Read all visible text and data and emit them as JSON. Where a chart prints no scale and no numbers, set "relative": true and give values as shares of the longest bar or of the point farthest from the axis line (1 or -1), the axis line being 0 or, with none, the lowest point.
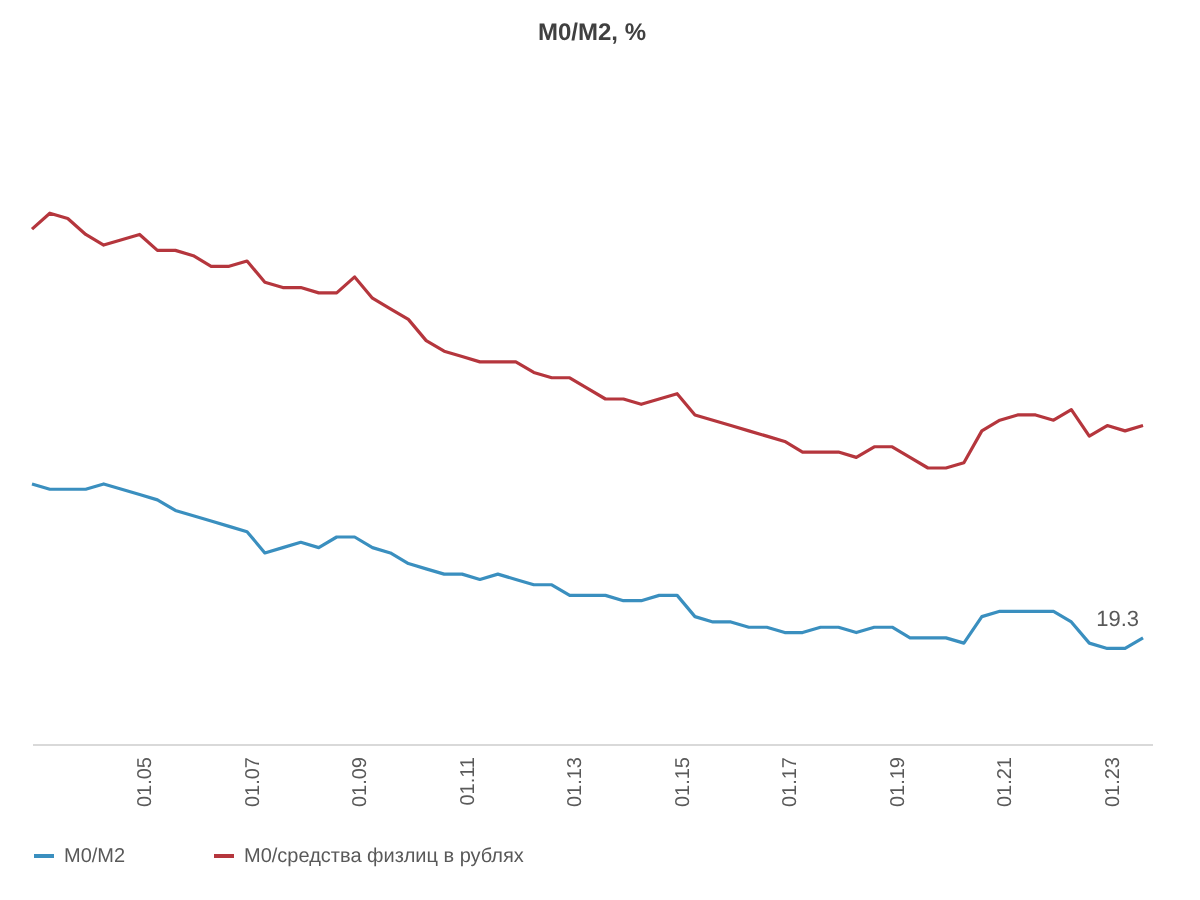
{
  "chart_data": {
    "type": "line",
    "title": "M0/M2, %",
    "relative": true,
    "legend": "bottom",
    "line_style": "solid",
    "x": [
      "2002-12",
      "2003-04",
      "2003-08",
      "2003-12",
      "2004-04",
      "2004-08",
      "2004-12",
      "2005-04",
      "2005-08",
      "2005-12",
      "2006-04",
      "2006-08",
      "2006-12",
      "2007-04",
      "2007-08",
      "2007-12",
      "2008-04",
      "2008-08",
      "2008-12",
      "2009-04",
      "2009-08",
      "2009-12",
      "2010-04",
      "2010-08",
      "2010-12",
      "2011-04",
      "2011-08",
      "2011-12",
      "2012-04",
      "2012-08",
      "2012-12",
      "2013-04",
      "2013-08",
      "2013-12",
      "2014-04",
      "2014-08",
      "2014-12",
      "2015-04",
      "2015-08",
      "2015-12",
      "2016-04",
      "2016-08",
      "2016-12",
      "2017-04",
      "2017-08",
      "2017-12",
      "2018-04",
      "2018-08",
      "2018-12",
      "2019-04",
      "2019-08",
      "2019-12",
      "2020-04",
      "2020-08",
      "2020-12",
      "2021-04",
      "2021-08",
      "2021-12",
      "2022-04",
      "2022-08",
      "2022-12",
      "2023-04",
      "2023-08"
    ],
    "xlim": [
      "2002-12",
      "2023-10"
    ],
    "xticks": [
      {
        "value": "2005-01",
        "label": "01.05"
      },
      {
        "value": "2007-01",
        "label": "01.07"
      },
      {
        "value": "2009-01",
        "label": "01.09"
      },
      {
        "value": "2011-01",
        "label": "01.11"
      },
      {
        "value": "2013-01",
        "label": "01.13"
      },
      {
        "value": "2015-01",
        "label": "01.15"
      },
      {
        "value": "2017-01",
        "label": "01.17"
      },
      {
        "value": "2019-01",
        "label": "01.19"
      },
      {
        "value": "2021-01",
        "label": "01.21"
      },
      {
        "value": "2023-01",
        "label": "01.23"
      }
    ],
    "series": [
      {
        "name": "M0/M2",
        "color": "#3a8fbf",
        "values": [
          0.49,
          0.48,
          0.48,
          0.48,
          0.49,
          0.48,
          0.47,
          0.46,
          0.44,
          0.43,
          0.42,
          0.41,
          0.4,
          0.36,
          0.37,
          0.38,
          0.37,
          0.39,
          0.39,
          0.37,
          0.36,
          0.34,
          0.33,
          0.32,
          0.32,
          0.31,
          0.32,
          0.31,
          0.3,
          0.3,
          0.28,
          0.28,
          0.28,
          0.27,
          0.27,
          0.28,
          0.28,
          0.24,
          0.23,
          0.23,
          0.22,
          0.22,
          0.21,
          0.21,
          0.22,
          0.22,
          0.21,
          0.22,
          0.22,
          0.2,
          0.2,
          0.2,
          0.19,
          0.24,
          0.25,
          0.25,
          0.25,
          0.25,
          0.23,
          0.19,
          0.18,
          0.18,
          0.2
        ]
      },
      {
        "name": "M0/средства физлиц в рублях",
        "color": "#b5363d",
        "values": [
          0.97,
          1.0,
          0.99,
          0.96,
          0.94,
          0.95,
          0.96,
          0.93,
          0.93,
          0.92,
          0.9,
          0.9,
          0.91,
          0.87,
          0.86,
          0.86,
          0.85,
          0.85,
          0.88,
          0.84,
          0.82,
          0.8,
          0.76,
          0.74,
          0.73,
          0.72,
          0.72,
          0.72,
          0.7,
          0.69,
          0.69,
          0.67,
          0.65,
          0.65,
          0.64,
          0.65,
          0.66,
          0.62,
          0.61,
          0.6,
          0.59,
          0.58,
          0.57,
          0.55,
          0.55,
          0.55,
          0.54,
          0.56,
          0.56,
          0.54,
          0.52,
          0.52,
          0.53,
          0.59,
          0.61,
          0.62,
          0.62,
          0.61,
          0.63,
          0.58,
          0.6,
          0.59,
          0.6
        ]
      }
    ],
    "annotations": [
      {
        "text": "19.3",
        "x": "2023-08",
        "y": 0.2
      }
    ]
  }
}
